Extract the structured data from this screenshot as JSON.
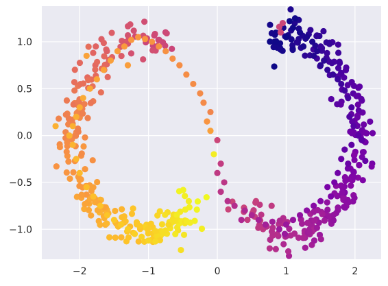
{
  "chart_data": {
    "type": "scatter",
    "title": "",
    "xlabel": "",
    "ylabel": "",
    "xlim": [
      -2.55,
      2.38
    ],
    "ylim": [
      -1.32,
      1.38
    ],
    "xticks": [
      -2,
      -1,
      0,
      1,
      2
    ],
    "yticks": [
      -1.0,
      -0.5,
      0.0,
      0.5,
      1.0
    ],
    "xtick_labels": [
      "−2",
      "−1",
      "0",
      "1",
      "2"
    ],
    "ytick_labels": [
      "−1.0",
      "−0.5",
      "0.0",
      "0.5",
      "1.0"
    ],
    "grid": true,
    "legend": "none",
    "background": "#EAEAF2",
    "colormap": "plasma",
    "color_by": "position along the two-moons curve",
    "point_count": 500,
    "points": [
      {
        "x": 1.0,
        "y": 1.05
      },
      {
        "x": 0.92,
        "y": 1.1
      },
      {
        "x": 0.9,
        "y": 1.16
      },
      {
        "x": 0.95,
        "y": 1.2
      },
      {
        "x": 1.05,
        "y": 1.22
      },
      {
        "x": 1.13,
        "y": 1.25
      },
      {
        "x": 1.1,
        "y": 1.15
      },
      {
        "x": 1.2,
        "y": 1.1
      },
      {
        "x": 1.3,
        "y": 1.05
      },
      {
        "x": 1.25,
        "y": 0.95
      },
      {
        "x": 1.38,
        "y": 1.0
      },
      {
        "x": 1.45,
        "y": 0.9
      },
      {
        "x": 1.4,
        "y": 0.85
      },
      {
        "x": 1.55,
        "y": 0.8
      },
      {
        "x": 1.5,
        "y": 0.75
      },
      {
        "x": 1.6,
        "y": 0.7
      },
      {
        "x": 1.68,
        "y": 0.65
      },
      {
        "x": 1.75,
        "y": 0.6
      },
      {
        "x": 1.8,
        "y": 0.55
      },
      {
        "x": 1.85,
        "y": 0.48
      },
      {
        "x": 1.9,
        "y": 0.4
      },
      {
        "x": 1.95,
        "y": 0.3
      },
      {
        "x": 1.92,
        "y": 0.2
      },
      {
        "x": 1.98,
        "y": 0.1
      },
      {
        "x": 2.05,
        "y": 0.0
      },
      {
        "x": 2.1,
        "y": -0.05
      },
      {
        "x": 1.95,
        "y": -0.1
      },
      {
        "x": 1.85,
        "y": -0.15
      },
      {
        "x": 1.8,
        "y": -0.25
      },
      {
        "x": 1.9,
        "y": -0.3
      },
      {
        "x": 2.15,
        "y": -0.27
      },
      {
        "x": 1.75,
        "y": -0.4
      },
      {
        "x": 1.7,
        "y": -0.5
      },
      {
        "x": 1.6,
        "y": -0.55
      },
      {
        "x": 1.65,
        "y": -0.65
      },
      {
        "x": 1.5,
        "y": -0.7
      },
      {
        "x": 1.4,
        "y": -0.75
      },
      {
        "x": 1.3,
        "y": -0.8
      },
      {
        "x": 1.2,
        "y": -0.85
      },
      {
        "x": 1.1,
        "y": -0.9
      },
      {
        "x": 1.0,
        "y": -0.95
      },
      {
        "x": 0.9,
        "y": -1.0
      },
      {
        "x": 0.98,
        "y": -1.05
      },
      {
        "x": 0.8,
        "y": -0.92
      },
      {
        "x": 0.7,
        "y": -0.95
      },
      {
        "x": 0.6,
        "y": -0.9
      },
      {
        "x": 0.5,
        "y": -0.85
      },
      {
        "x": 0.4,
        "y": -0.8
      },
      {
        "x": 0.35,
        "y": -0.9
      },
      {
        "x": 0.25,
        "y": -0.75
      },
      {
        "x": 0.15,
        "y": -0.7
      },
      {
        "x": 0.05,
        "y": -0.6
      },
      {
        "x": 0.1,
        "y": -0.5
      },
      {
        "x": 0.0,
        "y": -0.4
      },
      {
        "x": 0.05,
        "y": -0.3
      },
      {
        "x": -0.05,
        "y": -0.2
      },
      {
        "x": 0.0,
        "y": -0.05
      },
      {
        "x": -0.1,
        "y": 0.05
      },
      {
        "x": -0.15,
        "y": 0.15
      },
      {
        "x": -0.1,
        "y": 0.25
      },
      {
        "x": -0.2,
        "y": 0.35
      },
      {
        "x": -0.25,
        "y": 0.45
      },
      {
        "x": -0.35,
        "y": 0.55
      },
      {
        "x": -0.45,
        "y": 0.65
      },
      {
        "x": -0.55,
        "y": 0.75
      },
      {
        "x": -0.65,
        "y": 0.82
      },
      {
        "x": -0.75,
        "y": 0.9
      },
      {
        "x": -0.85,
        "y": 0.95
      },
      {
        "x": -0.95,
        "y": 1.0
      },
      {
        "x": -1.05,
        "y": 1.03
      },
      {
        "x": -1.15,
        "y": 1.05
      },
      {
        "x": -1.25,
        "y": 1.02
      },
      {
        "x": -1.35,
        "y": 0.95
      },
      {
        "x": -1.45,
        "y": 0.9
      },
      {
        "x": -1.55,
        "y": 0.8
      },
      {
        "x": -1.65,
        "y": 0.7
      },
      {
        "x": -1.75,
        "y": 0.6
      },
      {
        "x": -1.85,
        "y": 0.5
      },
      {
        "x": -1.95,
        "y": 0.4
      },
      {
        "x": -2.0,
        "y": 0.3
      },
      {
        "x": -2.05,
        "y": 0.2
      },
      {
        "x": -2.1,
        "y": 0.1
      },
      {
        "x": -2.15,
        "y": 0.0
      },
      {
        "x": -2.1,
        "y": -0.1
      },
      {
        "x": -2.05,
        "y": -0.25
      },
      {
        "x": -2.0,
        "y": -0.4
      },
      {
        "x": -1.9,
        "y": -0.55
      },
      {
        "x": -1.8,
        "y": -0.65
      },
      {
        "x": -1.7,
        "y": -0.75
      },
      {
        "x": -1.6,
        "y": -0.85
      },
      {
        "x": -1.5,
        "y": -0.9
      },
      {
        "x": -1.4,
        "y": -0.95
      },
      {
        "x": -1.3,
        "y": -1.0
      },
      {
        "x": -1.2,
        "y": -1.05
      },
      {
        "x": -1.1,
        "y": -1.08
      },
      {
        "x": -1.0,
        "y": -1.12
      },
      {
        "x": -0.9,
        "y": -1.13
      },
      {
        "x": -2.35,
        "y": 0.1
      },
      {
        "x": -1.9,
        "y": 0.85
      },
      {
        "x": -1.3,
        "y": 0.75
      }
    ]
  }
}
